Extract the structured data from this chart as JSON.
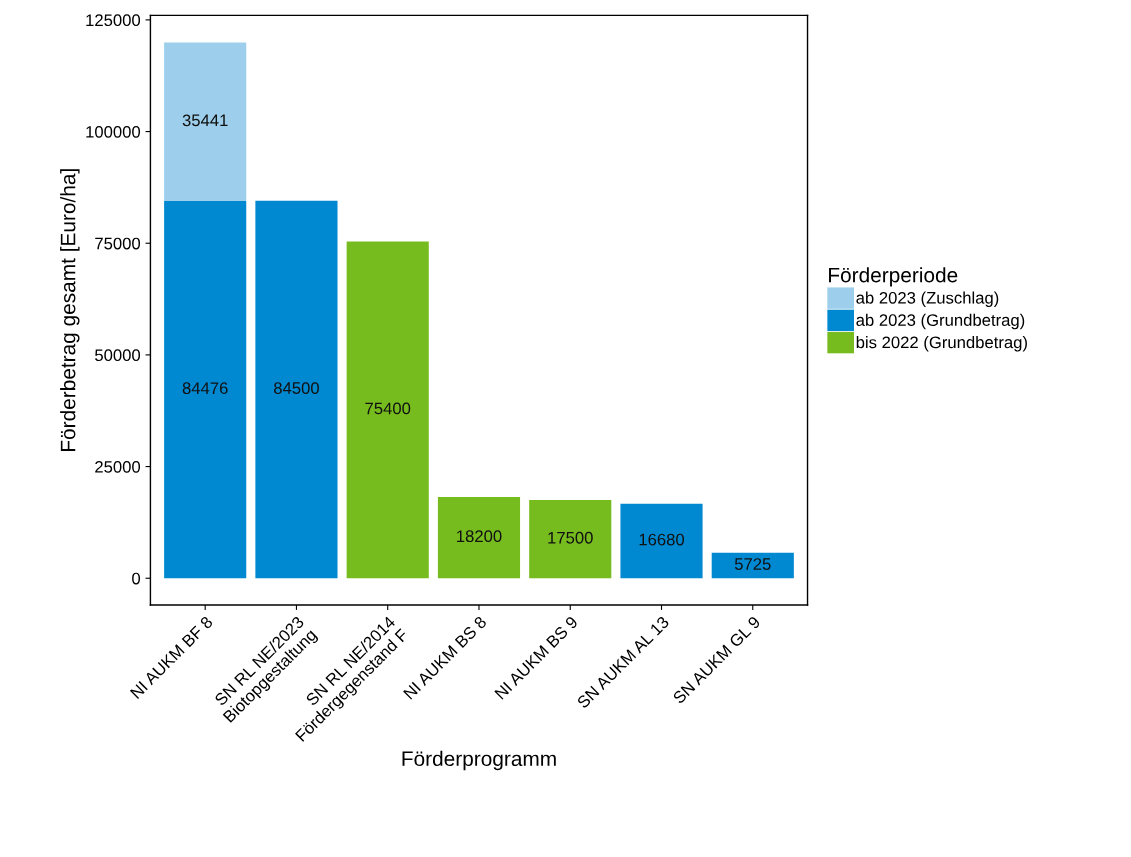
{
  "chart_data": {
    "type": "bar",
    "stacked": true,
    "xlabel": "Förderprogramm",
    "ylabel": "Förderbetrag gesamt [Euro/ha]",
    "legend_title": "Förderperiode",
    "categories": [
      "NI AUKM BF 8",
      "SN RL NE/2023\nBiotopgestaltung",
      "SN RL NE/2014\nFördergegenstand F",
      "NI AUKM BS 8",
      "NI AUKM BS 9",
      "SN AUKM AL 13",
      "SN AUKM GL 9"
    ],
    "series": [
      {
        "name": "bis 2022 (Grundbetrag)",
        "color": "#77bc1f",
        "values": [
          null,
          null,
          75400,
          18200,
          17500,
          null,
          null
        ]
      },
      {
        "name": "ab 2023 (Grundbetrag)",
        "color": "#0088d1",
        "values": [
          84476,
          84500,
          null,
          null,
          null,
          16680,
          5725
        ]
      },
      {
        "name": "ab 2023 (Zuschlag)",
        "color": "#9dcfec",
        "values": [
          35441,
          null,
          null,
          null,
          null,
          null,
          null
        ]
      }
    ],
    "ylim": [
      -6000,
      126000
    ],
    "yticks": [
      0,
      25000,
      50000,
      75000,
      100000,
      125000
    ],
    "data_labels": true,
    "grid": false,
    "legend": "right"
  }
}
